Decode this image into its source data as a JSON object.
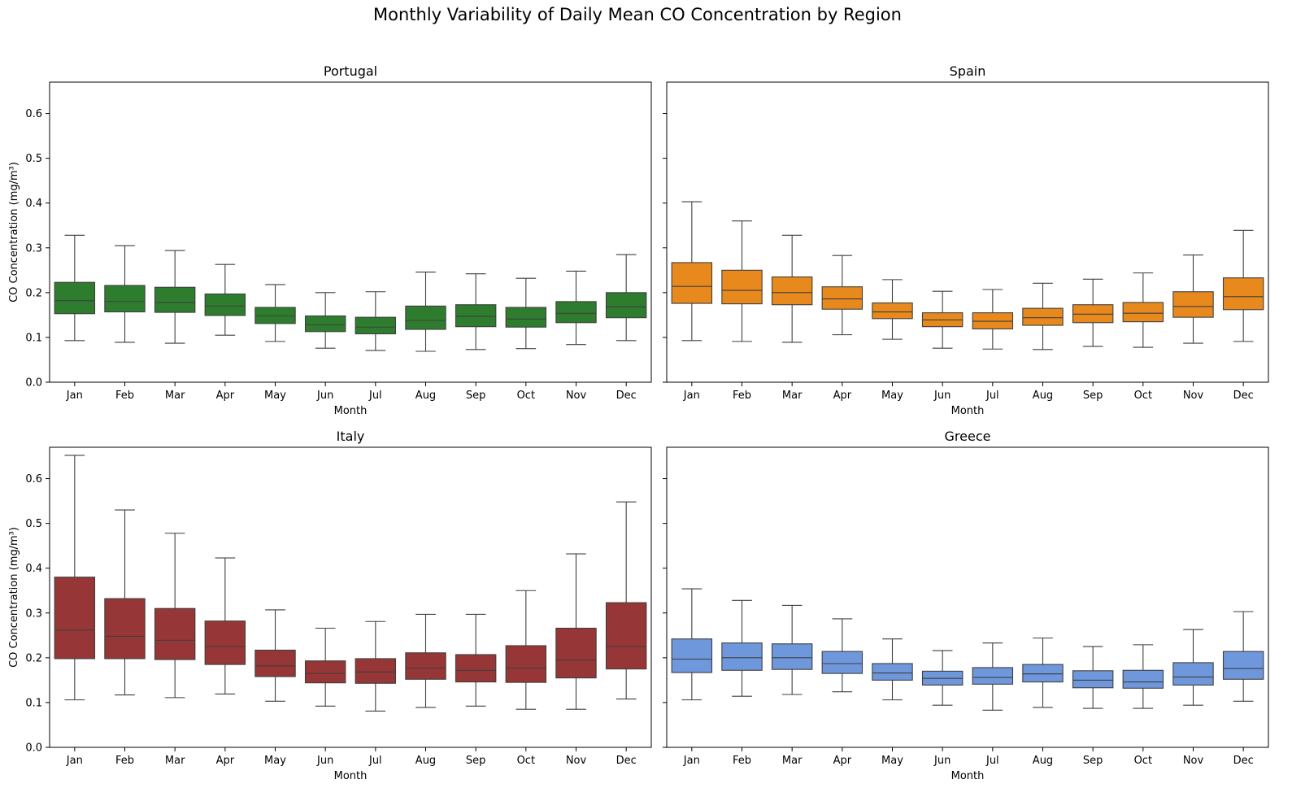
{
  "chart_data": {
    "type": "box",
    "title": "Monthly Variability of Daily Mean CO Concentration by Region",
    "ylim": [
      0,
      0.67
    ],
    "yticks": [
      "0.0",
      "0.1",
      "0.2",
      "0.3",
      "0.4",
      "0.5",
      "0.6"
    ],
    "categories": [
      "Jan",
      "Feb",
      "Mar",
      "Apr",
      "May",
      "Jun",
      "Jul",
      "Aug",
      "Sep",
      "Oct",
      "Nov",
      "Dec"
    ],
    "xlabel": "Month",
    "ylabel": "CO Concentration (mg/m³)",
    "panels": [
      {
        "title": "Portugal",
        "color": "#2e7d2e",
        "boxes": [
          {
            "whislo": 0.093,
            "q1": 0.153,
            "med": 0.182,
            "q3": 0.223,
            "whishi": 0.328
          },
          {
            "whislo": 0.089,
            "q1": 0.157,
            "med": 0.18,
            "q3": 0.216,
            "whishi": 0.305
          },
          {
            "whislo": 0.087,
            "q1": 0.156,
            "med": 0.178,
            "q3": 0.212,
            "whishi": 0.294
          },
          {
            "whislo": 0.105,
            "q1": 0.149,
            "med": 0.17,
            "q3": 0.197,
            "whishi": 0.263
          },
          {
            "whislo": 0.091,
            "q1": 0.131,
            "med": 0.148,
            "q3": 0.167,
            "whishi": 0.218
          },
          {
            "whislo": 0.076,
            "q1": 0.113,
            "med": 0.128,
            "q3": 0.148,
            "whishi": 0.2
          },
          {
            "whislo": 0.071,
            "q1": 0.108,
            "med": 0.123,
            "q3": 0.145,
            "whishi": 0.202
          },
          {
            "whislo": 0.069,
            "q1": 0.118,
            "med": 0.138,
            "q3": 0.17,
            "whishi": 0.246
          },
          {
            "whislo": 0.073,
            "q1": 0.124,
            "med": 0.147,
            "q3": 0.173,
            "whishi": 0.242
          },
          {
            "whislo": 0.075,
            "q1": 0.123,
            "med": 0.141,
            "q3": 0.167,
            "whishi": 0.232
          },
          {
            "whislo": 0.084,
            "q1": 0.133,
            "med": 0.154,
            "q3": 0.18,
            "whishi": 0.248
          },
          {
            "whislo": 0.093,
            "q1": 0.144,
            "med": 0.168,
            "q3": 0.2,
            "whishi": 0.285
          }
        ]
      },
      {
        "title": "Spain",
        "color": "#e8891d",
        "boxes": [
          {
            "whislo": 0.093,
            "q1": 0.176,
            "med": 0.214,
            "q3": 0.267,
            "whishi": 0.403
          },
          {
            "whislo": 0.091,
            "q1": 0.175,
            "med": 0.205,
            "q3": 0.25,
            "whishi": 0.36
          },
          {
            "whislo": 0.089,
            "q1": 0.173,
            "med": 0.2,
            "q3": 0.235,
            "whishi": 0.328
          },
          {
            "whislo": 0.106,
            "q1": 0.163,
            "med": 0.186,
            "q3": 0.213,
            "whishi": 0.283
          },
          {
            "whislo": 0.096,
            "q1": 0.142,
            "med": 0.157,
            "q3": 0.177,
            "whishi": 0.229
          },
          {
            "whislo": 0.076,
            "q1": 0.124,
            "med": 0.139,
            "q3": 0.155,
            "whishi": 0.203
          },
          {
            "whislo": 0.074,
            "q1": 0.119,
            "med": 0.136,
            "q3": 0.155,
            "whishi": 0.207
          },
          {
            "whislo": 0.073,
            "q1": 0.127,
            "med": 0.144,
            "q3": 0.165,
            "whishi": 0.221
          },
          {
            "whislo": 0.08,
            "q1": 0.133,
            "med": 0.152,
            "q3": 0.173,
            "whishi": 0.23
          },
          {
            "whislo": 0.078,
            "q1": 0.135,
            "med": 0.154,
            "q3": 0.178,
            "whishi": 0.244
          },
          {
            "whislo": 0.087,
            "q1": 0.145,
            "med": 0.169,
            "q3": 0.202,
            "whishi": 0.284
          },
          {
            "whislo": 0.091,
            "q1": 0.162,
            "med": 0.191,
            "q3": 0.233,
            "whishi": 0.339
          }
        ]
      },
      {
        "title": "Italy",
        "color": "#973636",
        "boxes": [
          {
            "whislo": 0.106,
            "q1": 0.198,
            "med": 0.262,
            "q3": 0.38,
            "whishi": 0.652
          },
          {
            "whislo": 0.117,
            "q1": 0.198,
            "med": 0.248,
            "q3": 0.332,
            "whishi": 0.53
          },
          {
            "whislo": 0.111,
            "q1": 0.196,
            "med": 0.239,
            "q3": 0.31,
            "whishi": 0.478
          },
          {
            "whislo": 0.119,
            "q1": 0.185,
            "med": 0.225,
            "q3": 0.282,
            "whishi": 0.423
          },
          {
            "whislo": 0.103,
            "q1": 0.158,
            "med": 0.182,
            "q3": 0.217,
            "whishi": 0.307
          },
          {
            "whislo": 0.092,
            "q1": 0.144,
            "med": 0.165,
            "q3": 0.193,
            "whishi": 0.266
          },
          {
            "whislo": 0.081,
            "q1": 0.143,
            "med": 0.168,
            "q3": 0.198,
            "whishi": 0.281
          },
          {
            "whislo": 0.089,
            "q1": 0.152,
            "med": 0.177,
            "q3": 0.211,
            "whishi": 0.297
          },
          {
            "whislo": 0.092,
            "q1": 0.146,
            "med": 0.172,
            "q3": 0.207,
            "whishi": 0.297
          },
          {
            "whislo": 0.085,
            "q1": 0.145,
            "med": 0.177,
            "q3": 0.227,
            "whishi": 0.35
          },
          {
            "whislo": 0.085,
            "q1": 0.155,
            "med": 0.195,
            "q3": 0.266,
            "whishi": 0.432
          },
          {
            "whislo": 0.108,
            "q1": 0.175,
            "med": 0.225,
            "q3": 0.323,
            "whishi": 0.548
          }
        ]
      },
      {
        "title": "Greece",
        "color": "#6f97dc",
        "boxes": [
          {
            "whislo": 0.106,
            "q1": 0.167,
            "med": 0.197,
            "q3": 0.242,
            "whishi": 0.354
          },
          {
            "whislo": 0.114,
            "q1": 0.172,
            "med": 0.2,
            "q3": 0.233,
            "whishi": 0.328
          },
          {
            "whislo": 0.118,
            "q1": 0.174,
            "med": 0.2,
            "q3": 0.231,
            "whishi": 0.317
          },
          {
            "whislo": 0.124,
            "q1": 0.165,
            "med": 0.187,
            "q3": 0.214,
            "whishi": 0.287
          },
          {
            "whislo": 0.106,
            "q1": 0.15,
            "med": 0.166,
            "q3": 0.187,
            "whishi": 0.242
          },
          {
            "whislo": 0.094,
            "q1": 0.139,
            "med": 0.154,
            "q3": 0.17,
            "whishi": 0.216
          },
          {
            "whislo": 0.083,
            "q1": 0.141,
            "med": 0.156,
            "q3": 0.178,
            "whishi": 0.233
          },
          {
            "whislo": 0.089,
            "q1": 0.146,
            "med": 0.164,
            "q3": 0.185,
            "whishi": 0.244
          },
          {
            "whislo": 0.087,
            "q1": 0.133,
            "med": 0.15,
            "q3": 0.171,
            "whishi": 0.225
          },
          {
            "whislo": 0.087,
            "q1": 0.132,
            "med": 0.146,
            "q3": 0.172,
            "whishi": 0.229
          },
          {
            "whislo": 0.094,
            "q1": 0.139,
            "med": 0.157,
            "q3": 0.189,
            "whishi": 0.263
          },
          {
            "whislo": 0.103,
            "q1": 0.152,
            "med": 0.176,
            "q3": 0.214,
            "whishi": 0.303
          }
        ]
      }
    ]
  }
}
